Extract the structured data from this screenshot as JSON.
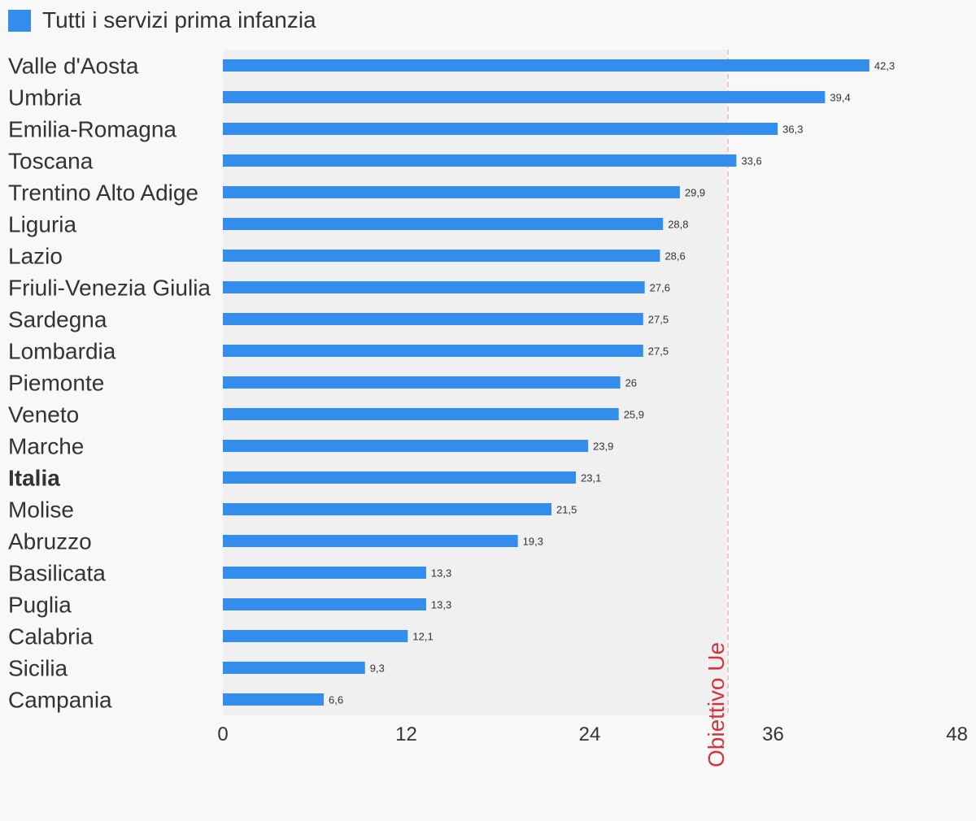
{
  "chart_data": {
    "type": "bar",
    "orientation": "horizontal",
    "title": "",
    "xlabel": "",
    "ylabel": "",
    "xlim": [
      0,
      48
    ],
    "x_ticks": [
      "0",
      "12",
      "24",
      "36",
      "48"
    ],
    "grid": false,
    "legend_position": "top-left",
    "categories": [
      "Valle d'Aosta",
      "Umbria",
      "Emilia-Romagna",
      "Toscana",
      "Trentino Alto Adige",
      "Liguria",
      "Lazio",
      "Friuli-Venezia Giulia",
      "Sardegna",
      "Lombardia",
      "Piemonte",
      "Veneto",
      "Marche",
      "Italia",
      "Molise",
      "Abruzzo",
      "Basilicata",
      "Puglia",
      "Calabria",
      "Sicilia",
      "Campania"
    ],
    "highlighted_category": "Italia",
    "series": [
      {
        "name": "Tutti i servizi prima infanzia",
        "color": "#338ded",
        "values": [
          42.3,
          39.4,
          36.3,
          33.6,
          29.9,
          28.8,
          28.6,
          27.6,
          27.5,
          27.5,
          26,
          25.9,
          23.9,
          23.1,
          21.5,
          19.3,
          13.3,
          13.3,
          12.1,
          9.3,
          6.6
        ],
        "value_labels": [
          "42,3",
          "39,4",
          "36,3",
          "33,6",
          "29,9",
          "28,8",
          "28,6",
          "27,6",
          "27,5",
          "27,5",
          "26",
          "25,9",
          "23,9",
          "23,1",
          "21,5",
          "19,3",
          "13,3",
          "13,3",
          "12,1",
          "9,3",
          "6,6"
        ]
      }
    ],
    "reference_line": {
      "label": "Obiettivo Ue",
      "value": 33,
      "color": "#d6333c"
    },
    "shaded_band": {
      "from": 0,
      "to": 33,
      "color": "#f0f0f0"
    }
  },
  "legend": {
    "label": "Tutti i servizi prima infanzia",
    "color": "#338ded"
  }
}
